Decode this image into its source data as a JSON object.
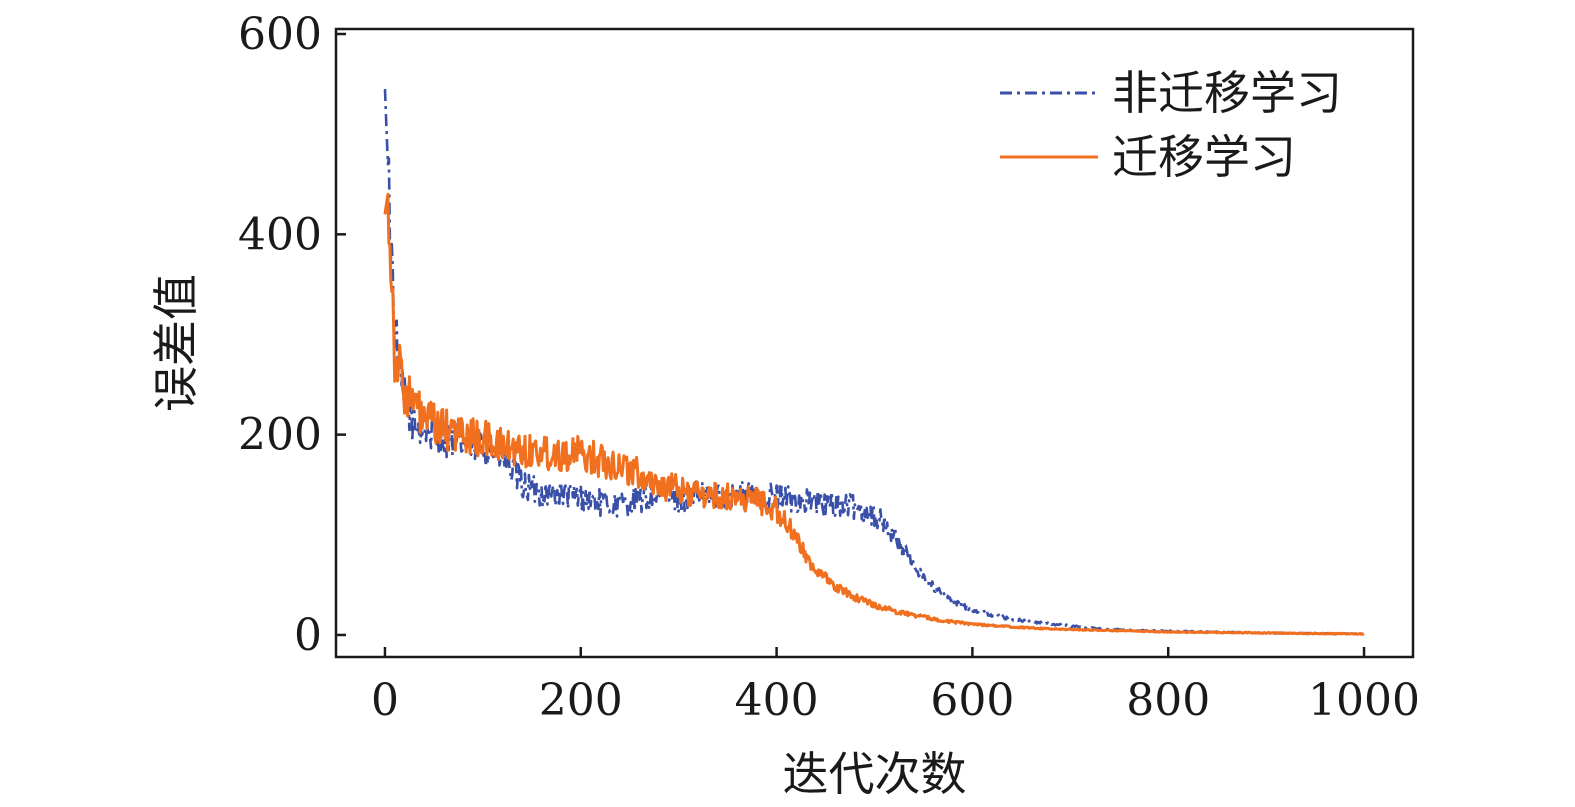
{
  "chart_data": {
    "type": "line",
    "title": "",
    "xlabel": "迭代次数",
    "ylabel": "误差值",
    "xlim": [
      -50,
      1050
    ],
    "ylim": [
      -22,
      605
    ],
    "xticks": [
      0,
      200,
      400,
      600,
      800,
      1000
    ],
    "yticks": [
      0,
      200,
      400,
      600
    ],
    "grid": false,
    "legend_position": "top-right",
    "series": [
      {
        "name": "非迁移学习",
        "color": "#3a4fa8",
        "style": "dash-dot",
        "x": [
          0,
          5,
          10,
          15,
          20,
          25,
          30,
          40,
          50,
          60,
          80,
          100,
          120,
          140,
          160,
          180,
          200,
          220,
          240,
          260,
          280,
          300,
          320,
          340,
          360,
          380,
          400,
          420,
          440,
          460,
          480,
          500,
          510,
          520,
          530,
          540,
          550,
          560,
          570,
          580,
          600,
          620,
          640,
          660,
          680,
          700,
          720,
          740,
          760,
          780,
          800,
          850,
          900,
          950,
          1000
        ],
        "y": [
          545,
          420,
          310,
          260,
          235,
          220,
          210,
          205,
          200,
          198,
          192,
          188,
          178,
          150,
          142,
          140,
          138,
          132,
          130,
          135,
          138,
          135,
          140,
          138,
          140,
          140,
          138,
          135,
          132,
          130,
          128,
          120,
          110,
          100,
          85,
          70,
          58,
          48,
          40,
          34,
          25,
          20,
          16,
          13,
          11,
          9,
          7,
          6,
          5,
          4.5,
          4,
          3,
          2,
          1.5,
          1
        ]
      },
      {
        "name": "迁移学习",
        "color": "#f07020",
        "style": "solid",
        "x": [
          0,
          3,
          6,
          10,
          15,
          20,
          30,
          40,
          60,
          80,
          100,
          120,
          140,
          160,
          180,
          200,
          220,
          240,
          260,
          280,
          300,
          320,
          340,
          360,
          380,
          400,
          410,
          420,
          430,
          440,
          460,
          480,
          500,
          520,
          540,
          560,
          580,
          600,
          640,
          680,
          720,
          760,
          800,
          900,
          1000
        ],
        "y": [
          420,
          440,
          380,
          280,
          265,
          245,
          230,
          215,
          205,
          200,
          195,
          188,
          185,
          183,
          182,
          180,
          175,
          170,
          160,
          150,
          145,
          140,
          138,
          137,
          136,
          125,
          112,
          95,
          80,
          65,
          48,
          38,
          30,
          24,
          20,
          16,
          13,
          11,
          8,
          6,
          5,
          4,
          3,
          2,
          1
        ]
      }
    ]
  }
}
